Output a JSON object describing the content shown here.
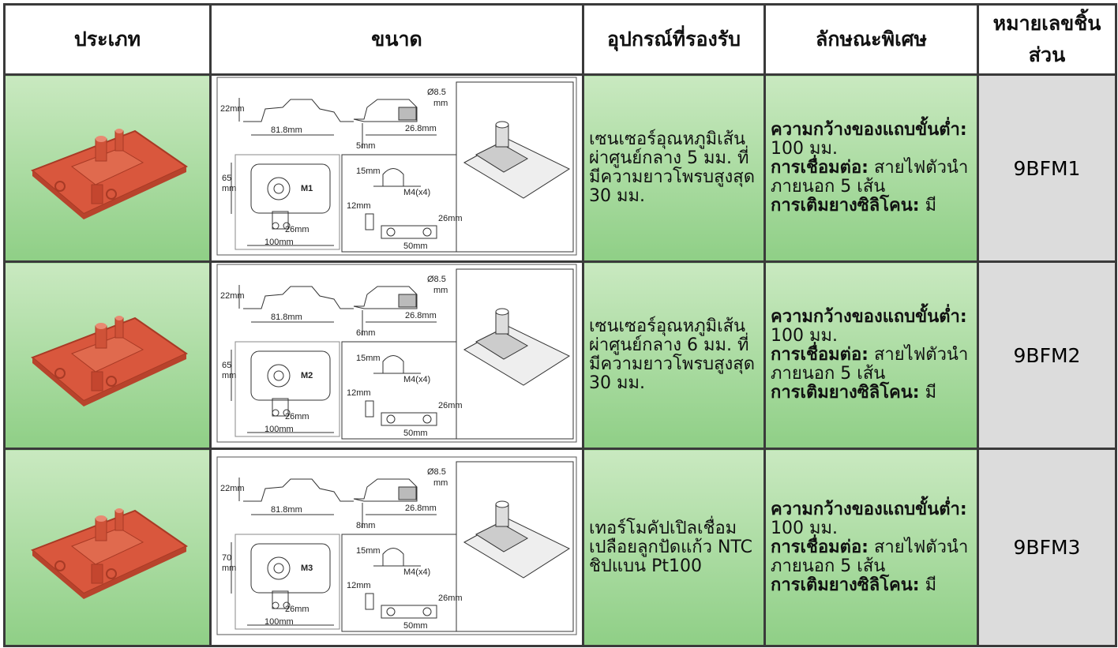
{
  "header": {
    "columns": [
      "ประเภท",
      "ขนาด",
      "อุปกรณ์ที่รองรับ",
      "ลักษณะพิเศษ",
      "หมายเลขชิ้นส่วน"
    ]
  },
  "rows": [
    {
      "drawing": {
        "height": "22mm",
        "length": "81.8mm",
        "diameter": "Ø8.5",
        "diameter_unit": "mm",
        "width": "26.8mm",
        "offset": "5mm",
        "depth": "65",
        "depth_unit": "mm",
        "model": "M1",
        "slot": "26mm",
        "overall": "100mm",
        "clamp": "15mm",
        "screw": "M4(x4)",
        "clamp_offset": "12mm",
        "clamp_height": "26mm",
        "clamp_length": "50mm"
      },
      "devices": "เซนเซอร์อุณหภูมิเส้นผ่าศูนย์กลาง 5 มม. ที่มีความยาวโพรบสูงสุด 30 มม.",
      "features": [
        {
          "label": "ความกว้างของแถบขั้นต่ำ:",
          "text": "100 มม."
        },
        {
          "label": "การเชื่อมต่อ:",
          "text": "สายไฟตัวนำภายนอก 5 เส้น"
        },
        {
          "label": "การเติมยางซิลิโคน:",
          "text": "มี"
        }
      ],
      "part_no": "9BFM1"
    },
    {
      "drawing": {
        "height": "22mm",
        "length": "81.8mm",
        "diameter": "Ø8.5",
        "diameter_unit": "mm",
        "width": "26.8mm",
        "offset": "6mm",
        "depth": "65",
        "depth_unit": "mm",
        "model": "M2",
        "slot": "26mm",
        "overall": "100mm",
        "clamp": "15mm",
        "screw": "M4(x4)",
        "clamp_offset": "12mm",
        "clamp_height": "26mm",
        "clamp_length": "50mm"
      },
      "devices": "เซนเซอร์อุณหภูมิเส้นผ่าศูนย์กลาง 6 มม. ที่มีความยาวโพรบสูงสุด 30 มม.",
      "features": [
        {
          "label": "ความกว้างของแถบขั้นต่ำ:",
          "text": "100 มม."
        },
        {
          "label": "การเชื่อมต่อ:",
          "text": "สายไฟตัวนำภายนอก 5 เส้น"
        },
        {
          "label": "การเติมยางซิลิโคน:",
          "text": "มี"
        }
      ],
      "part_no": "9BFM2"
    },
    {
      "drawing": {
        "height": "22mm",
        "length": "81.8mm",
        "diameter": "Ø8.5",
        "diameter_unit": "mm",
        "width": "26.8mm",
        "offset": "8mm",
        "depth": "70",
        "depth_unit": "mm",
        "model": "M3",
        "slot": "26mm",
        "overall": "100mm",
        "clamp": "15mm",
        "screw": "M4(x4)",
        "clamp_offset": "12mm",
        "clamp_height": "26mm",
        "clamp_length": "50mm"
      },
      "devices": "เทอร์โมคัปเปิลเชื่อมเปลือยลูกปัดแก้ว NTC ชิปแบน Pt100",
      "features": [
        {
          "label": "ความกว้างของแถบขั้นต่ำ:",
          "text": "100 มม."
        },
        {
          "label": "การเชื่อมต่อ:",
          "text": "สายไฟตัวนำภายนอก 5 เส้น"
        },
        {
          "label": "การเติมยางซิลิโคน:",
          "text": "มี"
        }
      ],
      "part_no": "9BFM3"
    }
  ]
}
